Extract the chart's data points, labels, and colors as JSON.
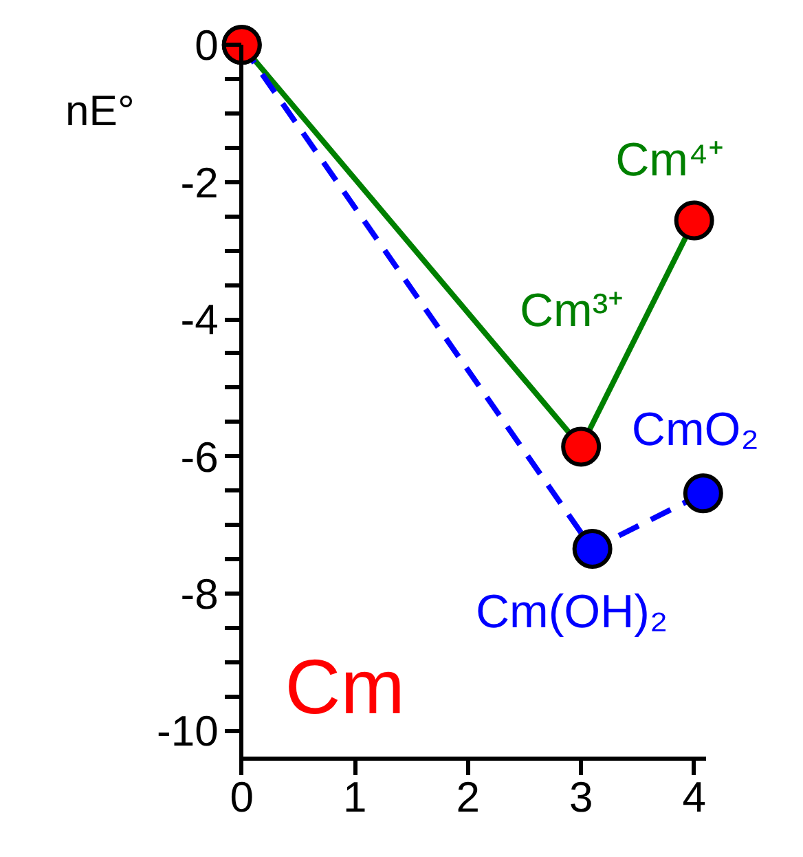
{
  "chart_data": {
    "type": "line",
    "ylabel": "nE°",
    "x": [
      0,
      3,
      4
    ],
    "series": [
      {
        "color": "#008000",
        "line_style": "solid",
        "colors": [
          "#ff0000",
          "#ff0000",
          "#ff0000"
        ],
        "values": [
          0,
          -5.86,
          -2.56
        ]
      },
      {
        "color": "#0000ff",
        "line_style": "dashed",
        "x": [
          0,
          3.1,
          4.08
        ],
        "colors": [
          "#ff0000",
          "#0000ff",
          "#0000ff"
        ],
        "values": [
          0,
          -7.35,
          -6.54
        ]
      }
    ],
    "annotations": [
      {
        "text": "Cm⁴⁺",
        "x": 4,
        "y": -2.56
      },
      {
        "text": "Cm³⁺",
        "x": 3,
        "y": -5.86
      },
      {
        "text": "CmO₂",
        "x": 4.08,
        "y": -6.54
      },
      {
        "text": "Cm(OH)₂",
        "x": 3.1,
        "y": -7.35
      },
      "Cm"
    ],
    "marker": "circle",
    "grid": false,
    "xlim": [
      0,
      4.1
    ],
    "ylim": [
      -10.4,
      0
    ],
    "xticks": [
      0,
      1,
      2,
      3,
      4
    ],
    "yticks": [
      0,
      {
        "value": -0.5,
        "label": null
      },
      {
        "value": -1,
        "label": null
      },
      {
        "value": -1.5,
        "label": null
      },
      -2,
      {
        "value": -2.5,
        "label": null
      },
      {
        "value": -3,
        "label": null
      },
      {
        "value": -3.5,
        "label": null
      },
      -4,
      {
        "value": -4.5,
        "label": null
      },
      {
        "value": -5,
        "label": null
      },
      {
        "value": -5.5,
        "label": null
      },
      -6,
      {
        "value": -6.5,
        "label": null
      },
      {
        "value": -7,
        "label": null
      },
      {
        "value": -7.5,
        "label": null
      },
      -8,
      {
        "value": -8.5,
        "label": null
      },
      {
        "value": -9,
        "label": null
      },
      {
        "value": -9.5,
        "label": null
      },
      -10
    ]
  }
}
